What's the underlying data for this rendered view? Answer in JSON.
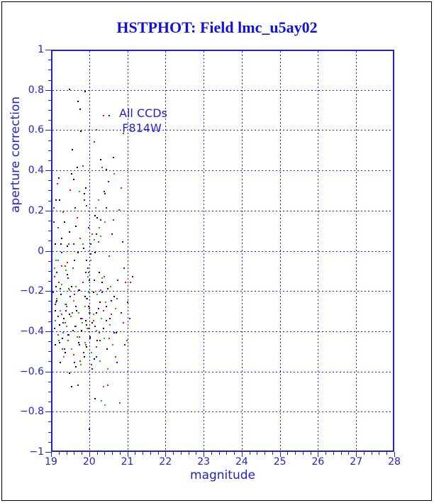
{
  "title": {
    "text": "HSTPHOT: Field lmc_u5ay02",
    "color": "#1111dd"
  },
  "chart_data": {
    "type": "scatter",
    "title": "HSTPHOT: Field lmc_u5ay02",
    "xlabel": "magnitude",
    "ylabel": "aperture correction",
    "xlim": [
      19,
      28
    ],
    "ylim": [
      -1,
      1
    ],
    "x_ticks": [
      19,
      20,
      21,
      22,
      23,
      24,
      25,
      26,
      27,
      28
    ],
    "x_tick_labels": [
      "19",
      "20",
      "21",
      "22",
      "23",
      "24",
      "25",
      "26",
      "27",
      "28"
    ],
    "y_ticks": [
      1,
      0.8,
      0.6,
      0.4,
      0.2,
      0,
      -0.2,
      -0.4,
      -0.6,
      -0.8,
      -1
    ],
    "y_tick_labels": [
      "1",
      "0.8",
      "0.6",
      "0.4",
      "0.2",
      "0",
      "−0.2",
      "−0.4",
      "−0.6",
      "−0.8",
      "−1"
    ],
    "x_minor_step": 0.2,
    "y_minor_step": 0.05,
    "grid": "dotted lines at every major tick",
    "axis_color": "#2222cc",
    "grid_color": "#2222cc",
    "text_color": "#2222cc",
    "annotations": [
      "All CCDs",
      "F814W"
    ],
    "annotation_position": "top-left inside plot",
    "series": [
      {
        "name": "black",
        "color": "#000000",
        "points": [
          [
            19.45,
            0.81
          ],
          [
            19.86,
            0.8
          ],
          [
            19.67,
            0.75
          ],
          [
            19.73,
            0.71
          ],
          [
            19.74,
            0.6
          ],
          [
            19.52,
            0.51
          ],
          [
            20.26,
            0.46
          ],
          [
            19.66,
            0.42
          ],
          [
            19.51,
            0.39
          ],
          [
            19.16,
            0.37
          ],
          [
            19.56,
            0.36
          ],
          [
            19.88,
            0.32
          ],
          [
            19.83,
            0.29
          ],
          [
            19.1,
            0.26
          ],
          [
            19.19,
            0.26
          ],
          [
            20.12,
            0.18
          ],
          [
            20.17,
            0.17
          ],
          [
            19.31,
            0.15
          ],
          [
            19.62,
            0.13
          ],
          [
            19.44,
            0.1
          ],
          [
            19.25,
            0.07
          ],
          [
            19.07,
            0.04
          ],
          [
            19.22,
            0.04
          ],
          [
            19.39,
            0.03
          ],
          [
            19.81,
            0.02
          ],
          [
            19.67,
            0.0
          ],
          [
            20.12,
            0.0
          ],
          [
            19.89,
            -0.04
          ],
          [
            19.39,
            -0.11
          ],
          [
            20.22,
            -0.1
          ],
          [
            19.97,
            -0.14
          ],
          [
            20.31,
            -0.15
          ],
          [
            19.1,
            -0.17
          ],
          [
            19.5,
            -0.17
          ],
          [
            20.45,
            -0.18
          ],
          [
            19.7,
            -0.19
          ],
          [
            20.08,
            -0.2
          ],
          [
            19.23,
            -0.21
          ],
          [
            19.86,
            -0.22
          ],
          [
            20.62,
            -0.22
          ],
          [
            19.12,
            -0.24
          ],
          [
            19.55,
            -0.24
          ],
          [
            20.25,
            -0.25
          ],
          [
            19.36,
            -0.26
          ],
          [
            19.95,
            -0.27
          ],
          [
            20.41,
            -0.27
          ],
          [
            19.07,
            -0.29
          ],
          [
            19.64,
            -0.29
          ],
          [
            20.15,
            -0.3
          ],
          [
            19.45,
            -0.31
          ],
          [
            19.3,
            -0.33
          ],
          [
            20.5,
            -0.33
          ],
          [
            19.88,
            -0.34
          ],
          [
            20.05,
            -0.35
          ],
          [
            19.19,
            -0.36
          ],
          [
            19.59,
            -0.37
          ],
          [
            20.33,
            -0.38
          ],
          [
            19.77,
            -0.39
          ],
          [
            20.68,
            -0.4
          ],
          [
            19.41,
            -0.41
          ],
          [
            19.98,
            -0.42
          ],
          [
            19.26,
            -0.43
          ],
          [
            20.18,
            -0.44
          ],
          [
            19.68,
            -0.45
          ],
          [
            19.08,
            -0.46
          ],
          [
            19.9,
            -0.47
          ],
          [
            20.44,
            -0.48
          ],
          [
            19.34,
            -0.5
          ],
          [
            19.84,
            -0.52
          ],
          [
            20.1,
            -0.53
          ],
          [
            19.21,
            -0.55
          ],
          [
            19.61,
            -0.57
          ],
          [
            19.45,
            -0.6
          ],
          [
            19.5,
            -0.67
          ],
          [
            20.12,
            -0.73
          ],
          [
            19.97,
            -0.88
          ]
        ]
      },
      {
        "name": "red",
        "color": "#ee1111",
        "points": [
          [
            20.34,
            0.68
          ],
          [
            20.15,
            0.61
          ],
          [
            20.86,
            0.59
          ],
          [
            20.1,
            0.55
          ],
          [
            19.8,
            0.43
          ],
          [
            20.31,
            0.42
          ],
          [
            20.8,
            0.32
          ],
          [
            20.75,
            0.21
          ],
          [
            19.43,
            0.04
          ],
          [
            19.39,
            -0.05
          ],
          [
            19.24,
            -0.07
          ],
          [
            19.33,
            -0.07
          ],
          [
            19.54,
            -0.08
          ],
          [
            20.6,
            0.16
          ],
          [
            20.48,
            -0.02
          ],
          [
            19.15,
            0.12
          ],
          [
            19.65,
            0.17
          ],
          [
            19.28,
            0.2
          ],
          [
            19.9,
            0.23
          ],
          [
            19.47,
            0.31
          ],
          [
            19.13,
            0.34
          ],
          [
            20.05,
            0.09
          ],
          [
            20.21,
            0.05
          ],
          [
            19.72,
            0.07
          ],
          [
            19.95,
            -0.1
          ],
          [
            20.36,
            -0.12
          ],
          [
            19.8,
            -0.15
          ],
          [
            20.92,
            -0.15
          ],
          [
            19.17,
            -0.15
          ],
          [
            19.42,
            -0.18
          ],
          [
            20.26,
            -0.19
          ],
          [
            19.58,
            -0.21
          ],
          [
            19.9,
            -0.23
          ],
          [
            20.7,
            -0.23
          ],
          [
            19.1,
            -0.25
          ],
          [
            19.37,
            -0.27
          ],
          [
            19.97,
            -0.28
          ],
          [
            20.33,
            -0.29
          ],
          [
            19.52,
            -0.3
          ],
          [
            19.24,
            -0.31
          ],
          [
            20.55,
            -0.31
          ],
          [
            19.78,
            -0.33
          ],
          [
            20.08,
            -0.34
          ],
          [
            19.33,
            -0.35
          ],
          [
            20.86,
            -0.35
          ],
          [
            19.62,
            -0.37
          ],
          [
            19.95,
            -0.38
          ],
          [
            20.23,
            -0.4
          ],
          [
            19.15,
            -0.41
          ],
          [
            19.7,
            -0.42
          ],
          [
            20.48,
            -0.43
          ],
          [
            19.4,
            -0.44
          ],
          [
            19.88,
            -0.46
          ],
          [
            20.15,
            -0.47
          ],
          [
            19.26,
            -0.48
          ],
          [
            19.55,
            -0.51
          ],
          [
            20.65,
            -0.52
          ],
          [
            19.72,
            -0.54
          ],
          [
            20.02,
            -0.56
          ],
          [
            20.45,
            -0.66
          ],
          [
            20.77,
            -0.75
          ],
          [
            21.05,
            -0.15
          ],
          [
            20.95,
            -0.44
          ],
          [
            19.05,
            -0.12
          ],
          [
            19.03,
            0.22
          ]
        ]
      },
      {
        "name": "green",
        "color": "#00cc00",
        "points": [
          [
            20.61,
            0.39
          ],
          [
            19.71,
            0.3
          ],
          [
            20.21,
            0.26
          ],
          [
            20.13,
            0.22
          ],
          [
            20.38,
            0.15
          ],
          [
            20.23,
            0.12
          ],
          [
            20.26,
            0.08
          ],
          [
            20.1,
            0.06
          ],
          [
            19.8,
            0.04
          ],
          [
            19.09,
            -0.04
          ],
          [
            19.15,
            -0.04
          ],
          [
            20.0,
            -0.04
          ],
          [
            19.06,
            -0.08
          ],
          [
            19.36,
            -0.09
          ],
          [
            19.93,
            -0.12
          ],
          [
            20.3,
            -0.13
          ],
          [
            19.25,
            -0.16
          ],
          [
            19.62,
            -0.17
          ],
          [
            20.52,
            -0.17
          ],
          [
            19.44,
            -0.19
          ],
          [
            19.95,
            -0.2
          ],
          [
            20.18,
            -0.21
          ],
          [
            19.12,
            -0.23
          ],
          [
            19.56,
            -0.24
          ],
          [
            20.4,
            -0.25
          ],
          [
            19.33,
            -0.26
          ],
          [
            19.85,
            -0.27
          ],
          [
            20.65,
            -0.28
          ],
          [
            19.2,
            -0.29
          ],
          [
            19.69,
            -0.3
          ],
          [
            20.08,
            -0.31
          ],
          [
            19.48,
            -0.32
          ],
          [
            20.28,
            -0.33
          ],
          [
            19.08,
            -0.34
          ],
          [
            19.78,
            -0.35
          ],
          [
            20.5,
            -0.36
          ],
          [
            19.38,
            -0.37
          ],
          [
            19.92,
            -0.38
          ],
          [
            20.15,
            -0.39
          ],
          [
            19.27,
            -0.4
          ],
          [
            19.65,
            -0.42
          ],
          [
            20.35,
            -0.43
          ],
          [
            19.17,
            -0.44
          ],
          [
            19.85,
            -0.45
          ],
          [
            20.58,
            -0.46
          ],
          [
            19.5,
            -0.48
          ],
          [
            20.02,
            -0.5
          ],
          [
            19.3,
            -0.52
          ],
          [
            20.25,
            -0.54
          ],
          [
            19.75,
            -0.56
          ],
          [
            20.45,
            -0.58
          ],
          [
            20.34,
            -0.67
          ],
          [
            20.28,
            -0.74
          ],
          [
            20.38,
            -0.76
          ],
          [
            19.98,
            -0.3
          ]
        ]
      },
      {
        "name": "blue",
        "color": "#1111ee",
        "points": [
          [
            20.49,
            0.68
          ],
          [
            20.6,
            0.47
          ],
          [
            20.42,
            0.41
          ],
          [
            20.46,
            0.35
          ],
          [
            20.36,
            0.3
          ],
          [
            20.38,
            0.29
          ],
          [
            19.83,
            0.26
          ],
          [
            20.41,
            0.22
          ],
          [
            20.26,
            0.16
          ],
          [
            20.15,
            0.09
          ],
          [
            20.56,
            0.09
          ],
          [
            19.56,
            0.04
          ],
          [
            20.0,
            0.04
          ],
          [
            19.24,
            0.0
          ],
          [
            20.0,
            -0.01
          ],
          [
            19.58,
            -0.04
          ],
          [
            19.93,
            -0.08
          ],
          [
            19.11,
            -0.1
          ],
          [
            19.87,
            -0.1
          ],
          [
            19.4,
            -0.13
          ],
          [
            20.1,
            -0.14
          ],
          [
            20.72,
            -0.14
          ],
          [
            19.2,
            -0.18
          ],
          [
            19.68,
            -0.19
          ],
          [
            20.3,
            -0.2
          ],
          [
            19.47,
            -0.22
          ],
          [
            19.92,
            -0.23
          ],
          [
            20.55,
            -0.24
          ],
          [
            19.08,
            -0.26
          ],
          [
            19.61,
            -0.27
          ],
          [
            20.2,
            -0.28
          ],
          [
            19.35,
            -0.29
          ],
          [
            19.97,
            -0.3
          ],
          [
            20.8,
            -0.3
          ],
          [
            19.14,
            -0.32
          ],
          [
            19.74,
            -0.33
          ],
          [
            20.42,
            -0.34
          ],
          [
            19.28,
            -0.35
          ],
          [
            19.89,
            -0.36
          ],
          [
            20.12,
            -0.37
          ],
          [
            19.05,
            -0.38
          ],
          [
            19.53,
            -0.39
          ],
          [
            20.62,
            -0.4
          ],
          [
            19.42,
            -0.41
          ],
          [
            19.99,
            -0.43
          ],
          [
            20.25,
            -0.44
          ],
          [
            19.18,
            -0.45
          ],
          [
            19.7,
            -0.46
          ],
          [
            20.9,
            -0.46
          ],
          [
            19.32,
            -0.48
          ],
          [
            19.82,
            -0.5
          ],
          [
            20.16,
            -0.52
          ],
          [
            19.57,
            -0.55
          ],
          [
            20.05,
            -0.58
          ],
          [
            19.67,
            -0.66
          ],
          [
            21.1,
            -0.12
          ],
          [
            21.02,
            -0.33
          ],
          [
            20.98,
            -0.25
          ],
          [
            19.02,
            -0.2
          ],
          [
            19.04,
            0.15
          ],
          [
            20.85,
            0.05
          ],
          [
            20.88,
            -0.08
          ],
          [
            19.95,
            0.12
          ],
          [
            19.6,
            0.22
          ],
          [
            20.7,
            -0.55
          ]
        ]
      }
    ]
  }
}
